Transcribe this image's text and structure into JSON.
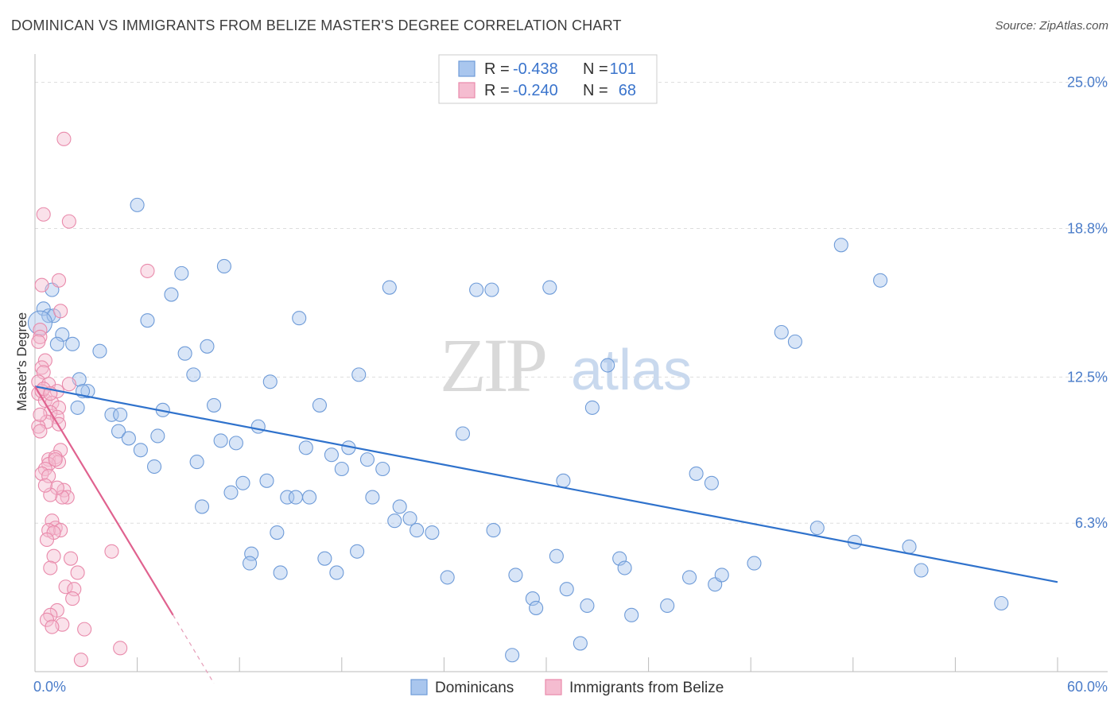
{
  "title": "DOMINICAN VS IMMIGRANTS FROM BELIZE MASTER'S DEGREE CORRELATION CHART",
  "source": "Source: ZipAtlas.com",
  "watermark": {
    "zip": "ZIP",
    "atlas": "atlas"
  },
  "colors": {
    "blue": "#a9c6ee",
    "blue_stroke": "#6e9bd8",
    "blue_line": "#2f72cc",
    "pink": "#f5bcd0",
    "pink_stroke": "#e98aab",
    "pink_line": "#e0628f",
    "grid": "#dddddd",
    "tick_text": "#4a7cc9"
  },
  "legend": {
    "r_label": "R =",
    "n_label": "N =",
    "rows": [
      {
        "r": "-0.438",
        "n": "101",
        "color": "blue"
      },
      {
        "r": "-0.240",
        "n": "68",
        "color": "pink"
      }
    ]
  },
  "chart_data": {
    "type": "scatter",
    "title": "DOMINICAN VS IMMIGRANTS FROM BELIZE MASTER'S DEGREE CORRELATION CHART",
    "xlabel": "",
    "ylabel": "Master's Degree",
    "xlim": [
      0,
      60
    ],
    "ylim": [
      0,
      25.9
    ],
    "x_ticks": [
      "0.0%",
      "60.0%"
    ],
    "y_ticks": [
      {
        "value": 25.0,
        "label": "25.0%"
      },
      {
        "value": 18.8,
        "label": "18.8%"
      },
      {
        "value": 12.5,
        "label": "12.5%"
      },
      {
        "value": 6.3,
        "label": "6.3%"
      }
    ],
    "series": [
      {
        "name": "Dominicans",
        "color": "blue",
        "trend": {
          "x0": 0.0,
          "y0": 12.1,
          "x1": 60.0,
          "y1": 3.8
        },
        "points": [
          [
            0.5,
            15.4
          ],
          [
            0.8,
            15.1
          ],
          [
            1.1,
            15.1
          ],
          [
            1.0,
            16.2
          ],
          [
            1.6,
            14.3
          ],
          [
            1.3,
            13.9
          ],
          [
            2.2,
            13.9
          ],
          [
            2.6,
            12.4
          ],
          [
            3.1,
            11.9
          ],
          [
            3.8,
            13.6
          ],
          [
            2.5,
            11.2
          ],
          [
            2.8,
            11.9
          ],
          [
            4.5,
            10.9
          ],
          [
            5.0,
            10.9
          ],
          [
            6.0,
            19.8
          ],
          [
            6.6,
            14.9
          ],
          [
            4.9,
            10.2
          ],
          [
            5.5,
            9.9
          ],
          [
            6.2,
            9.4
          ],
          [
            7.0,
            8.7
          ],
          [
            7.5,
            11.1
          ],
          [
            7.2,
            10.0
          ],
          [
            8.0,
            16.0
          ],
          [
            8.6,
            16.9
          ],
          [
            8.8,
            13.5
          ],
          [
            9.3,
            12.6
          ],
          [
            9.5,
            8.9
          ],
          [
            9.8,
            7.0
          ],
          [
            10.1,
            13.8
          ],
          [
            10.5,
            11.3
          ],
          [
            10.9,
            9.8
          ],
          [
            11.1,
            17.2
          ],
          [
            11.5,
            7.6
          ],
          [
            11.8,
            9.7
          ],
          [
            12.2,
            8.0
          ],
          [
            12.7,
            5.0
          ],
          [
            12.6,
            4.6
          ],
          [
            13.1,
            10.4
          ],
          [
            13.6,
            8.1
          ],
          [
            13.8,
            12.3
          ],
          [
            14.2,
            5.9
          ],
          [
            14.4,
            4.2
          ],
          [
            14.8,
            7.4
          ],
          [
            15.3,
            7.4
          ],
          [
            15.5,
            15.0
          ],
          [
            15.9,
            9.5
          ],
          [
            16.1,
            7.4
          ],
          [
            16.7,
            11.3
          ],
          [
            17.0,
            4.8
          ],
          [
            17.4,
            9.2
          ],
          [
            17.7,
            4.2
          ],
          [
            18.0,
            8.6
          ],
          [
            18.4,
            9.5
          ],
          [
            18.9,
            5.1
          ],
          [
            19.0,
            12.6
          ],
          [
            19.5,
            9.0
          ],
          [
            19.8,
            7.4
          ],
          [
            20.4,
            8.6
          ],
          [
            20.8,
            16.3
          ],
          [
            21.1,
            6.4
          ],
          [
            21.4,
            7.0
          ],
          [
            22.0,
            6.5
          ],
          [
            22.4,
            6.0
          ],
          [
            23.3,
            5.9
          ],
          [
            24.2,
            4.0
          ],
          [
            25.1,
            10.1
          ],
          [
            25.9,
            16.2
          ],
          [
            26.8,
            16.2
          ],
          [
            26.9,
            6.0
          ],
          [
            28.0,
            0.7
          ],
          [
            28.2,
            4.1
          ],
          [
            29.2,
            3.1
          ],
          [
            29.4,
            2.7
          ],
          [
            30.2,
            16.3
          ],
          [
            30.6,
            4.9
          ],
          [
            31.0,
            8.1
          ],
          [
            31.2,
            3.5
          ],
          [
            32.0,
            1.2
          ],
          [
            32.4,
            2.8
          ],
          [
            32.7,
            11.2
          ],
          [
            33.6,
            13.0
          ],
          [
            34.3,
            4.8
          ],
          [
            34.6,
            4.4
          ],
          [
            35.0,
            2.4
          ],
          [
            37.1,
            2.8
          ],
          [
            38.4,
            4.0
          ],
          [
            38.8,
            8.4
          ],
          [
            39.7,
            8.0
          ],
          [
            39.9,
            3.7
          ],
          [
            40.3,
            4.1
          ],
          [
            42.2,
            4.6
          ],
          [
            43.8,
            14.4
          ],
          [
            44.6,
            14.0
          ],
          [
            45.9,
            6.1
          ],
          [
            47.3,
            18.1
          ],
          [
            48.1,
            5.5
          ],
          [
            49.6,
            16.6
          ],
          [
            51.3,
            5.3
          ],
          [
            52.0,
            4.3
          ],
          [
            56.7,
            2.9
          ],
          [
            0.3,
            14.8
          ]
        ]
      },
      {
        "name": "Immigrants from Belize",
        "color": "pink",
        "trend": {
          "x0": 0.0,
          "y0": 12.1,
          "x1": 8.1,
          "y1": 2.4
        },
        "trend_dashed": {
          "x0": 8.1,
          "y0": 2.4,
          "x1": 10.5,
          "y1": -0.5
        },
        "points": [
          [
            1.7,
            22.6
          ],
          [
            0.5,
            19.4
          ],
          [
            2.0,
            19.1
          ],
          [
            6.6,
            17.0
          ],
          [
            1.4,
            16.6
          ],
          [
            0.4,
            16.4
          ],
          [
            1.5,
            15.3
          ],
          [
            0.3,
            14.5
          ],
          [
            0.3,
            14.2
          ],
          [
            0.2,
            14.0
          ],
          [
            0.6,
            13.2
          ],
          [
            0.4,
            12.9
          ],
          [
            0.5,
            12.7
          ],
          [
            0.2,
            12.3
          ],
          [
            0.8,
            12.2
          ],
          [
            2.0,
            12.2
          ],
          [
            1.3,
            11.9
          ],
          [
            0.2,
            11.8
          ],
          [
            0.6,
            11.5
          ],
          [
            1.0,
            11.4
          ],
          [
            1.4,
            11.2
          ],
          [
            0.9,
            11.0
          ],
          [
            1.3,
            10.8
          ],
          [
            0.7,
            10.6
          ],
          [
            1.4,
            10.5
          ],
          [
            0.2,
            10.4
          ],
          [
            0.3,
            10.2
          ],
          [
            1.5,
            9.4
          ],
          [
            0.8,
            9.0
          ],
          [
            1.2,
            9.1
          ],
          [
            1.4,
            8.9
          ],
          [
            0.8,
            8.8
          ],
          [
            0.6,
            8.6
          ],
          [
            0.4,
            8.4
          ],
          [
            0.8,
            8.3
          ],
          [
            1.7,
            7.7
          ],
          [
            1.9,
            7.4
          ],
          [
            1.6,
            7.4
          ],
          [
            1.3,
            7.8
          ],
          [
            0.9,
            7.5
          ],
          [
            1.0,
            6.4
          ],
          [
            1.2,
            6.1
          ],
          [
            0.8,
            6.0
          ],
          [
            1.5,
            6.0
          ],
          [
            1.1,
            5.9
          ],
          [
            0.7,
            5.6
          ],
          [
            4.5,
            5.1
          ],
          [
            1.1,
            4.9
          ],
          [
            2.1,
            4.8
          ],
          [
            0.9,
            4.4
          ],
          [
            2.5,
            4.2
          ],
          [
            1.8,
            3.6
          ],
          [
            2.3,
            3.5
          ],
          [
            2.2,
            3.1
          ],
          [
            1.3,
            2.6
          ],
          [
            0.9,
            2.4
          ],
          [
            0.7,
            2.2
          ],
          [
            1.6,
            2.0
          ],
          [
            1.0,
            1.9
          ],
          [
            2.9,
            1.8
          ],
          [
            5.0,
            1.0
          ],
          [
            2.7,
            0.5
          ],
          [
            0.4,
            11.9
          ],
          [
            0.5,
            12.0
          ],
          [
            0.9,
            11.8
          ],
          [
            0.3,
            10.9
          ],
          [
            1.2,
            9.0
          ],
          [
            0.6,
            7.9
          ]
        ]
      }
    ]
  },
  "bottom_legend": [
    {
      "label": "Dominicans",
      "color": "blue"
    },
    {
      "label": "Immigrants from Belize",
      "color": "pink"
    }
  ]
}
